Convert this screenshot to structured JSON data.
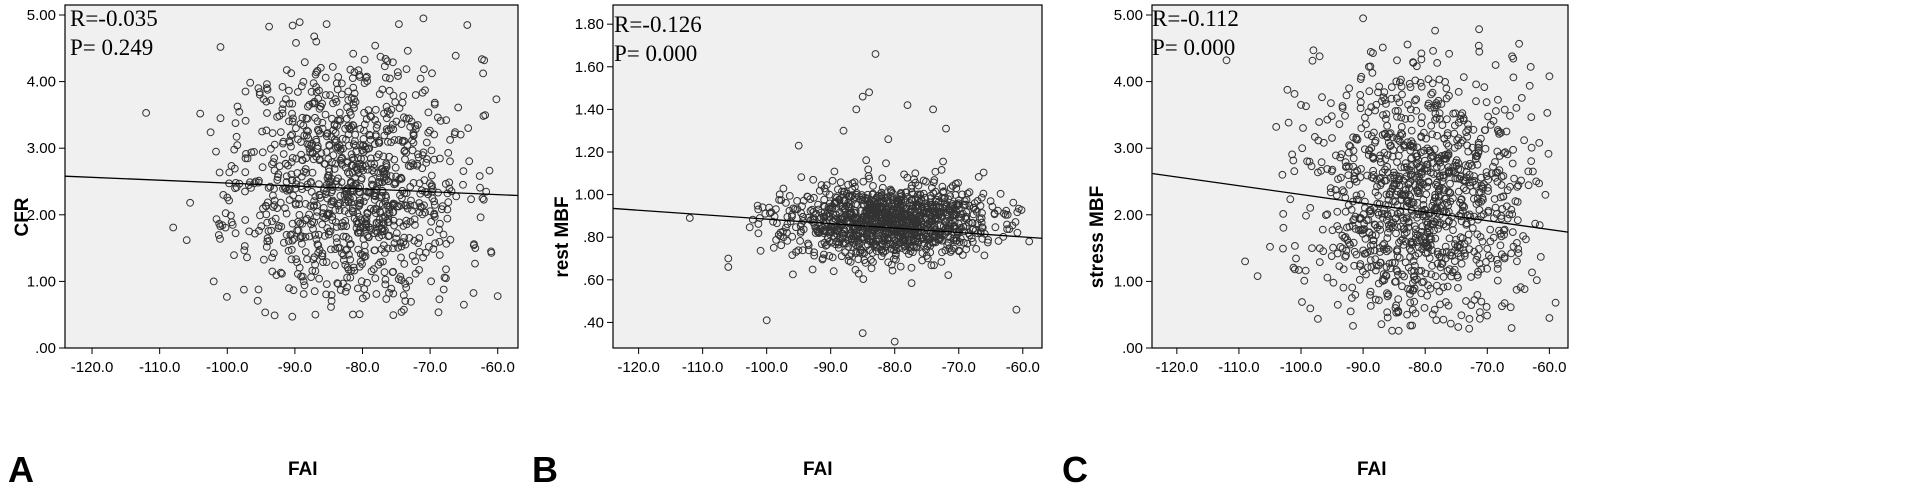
{
  "chart_data": [
    {
      "type": "scatter",
      "panel_label": "A",
      "xlabel": "FAI",
      "ylabel": "CFR",
      "annotation": {
        "r": "R=-0.035",
        "p": "P= 0.249"
      },
      "xlim": [
        -124,
        -57
      ],
      "ylim": [
        0,
        5.15
      ],
      "xticks": [
        -120,
        -110,
        -100,
        -90,
        -80,
        -70,
        -60
      ],
      "xtick_labels": [
        "-120.0",
        "-110.0",
        "-100.0",
        "-90.0",
        "-80.0",
        "-70.0",
        "-60.0"
      ],
      "yticks": [
        0,
        1,
        2,
        3,
        4,
        5
      ],
      "ytick_labels": [
        ".00",
        "1.00",
        "2.00",
        "3.00",
        "4.00",
        "5.00"
      ],
      "fit_line": {
        "x": [
          -124,
          -57
        ],
        "y": [
          2.58,
          2.29
        ]
      },
      "cloud": {
        "n": 1050,
        "x_mean": -82,
        "x_sd": 8.5,
        "y_mean": 2.45,
        "y_sd": 0.95,
        "y_min": 0.45,
        "y_max": 5.0,
        "seed": 11
      },
      "points": [
        {
          "x": -112,
          "y": 3.53
        },
        {
          "x": -108,
          "y": 1.81
        },
        {
          "x": -106,
          "y": 1.62
        },
        {
          "x": -105.5,
          "y": 2.18
        },
        {
          "x": -104,
          "y": 3.52
        },
        {
          "x": -102,
          "y": 1.0
        },
        {
          "x": -101,
          "y": 4.52
        },
        {
          "x": -101,
          "y": 3.45
        },
        {
          "x": -100,
          "y": 2.26
        },
        {
          "x": -62,
          "y": 4.32
        },
        {
          "x": -60,
          "y": 0.78
        },
        {
          "x": -61,
          "y": 1.45
        },
        {
          "x": -64.5,
          "y": 4.85
        },
        {
          "x": -65,
          "y": 0.65
        },
        {
          "x": -93,
          "y": 0.49
        }
      ],
      "grid": false,
      "background": "#f0f0f0"
    },
    {
      "type": "scatter",
      "panel_label": "B",
      "xlabel": "FAI",
      "ylabel": "rest MBF",
      "annotation": {
        "r": "R=-0.126",
        "p": "P= 0.000"
      },
      "xlim": [
        -124,
        -57
      ],
      "ylim": [
        0.28,
        1.89
      ],
      "xticks": [
        -120,
        -110,
        -100,
        -90,
        -80,
        -70,
        -60
      ],
      "xtick_labels": [
        "-120.0",
        "-110.0",
        "-100.0",
        "-90.0",
        "-80.0",
        "-70.0",
        "-60.0"
      ],
      "yticks": [
        0.4,
        0.6,
        0.8,
        1.0,
        1.2,
        1.4,
        1.6,
        1.8
      ],
      "ytick_labels": [
        ".40",
        ".60",
        ".80",
        "1.00",
        "1.20",
        "1.40",
        "1.60",
        "1.80"
      ],
      "fit_line": {
        "x": [
          -124,
          -57
        ],
        "y": [
          0.935,
          0.795
        ]
      },
      "cloud": {
        "n": 1150,
        "x_mean": -81,
        "x_sd": 8,
        "y_mean": 0.87,
        "y_sd": 0.09,
        "y_min": 0.42,
        "y_max": 1.2,
        "seed": 23
      },
      "points": [
        {
          "x": -83,
          "y": 1.66
        },
        {
          "x": -84,
          "y": 1.48
        },
        {
          "x": -85,
          "y": 1.46
        },
        {
          "x": -86,
          "y": 1.4
        },
        {
          "x": -78,
          "y": 1.42
        },
        {
          "x": -74,
          "y": 1.4
        },
        {
          "x": -72,
          "y": 1.31
        },
        {
          "x": -81,
          "y": 1.26
        },
        {
          "x": -88,
          "y": 1.3
        },
        {
          "x": -112,
          "y": 0.89
        },
        {
          "x": -106,
          "y": 0.7
        },
        {
          "x": -106,
          "y": 0.66
        },
        {
          "x": -100,
          "y": 0.41
        },
        {
          "x": -85,
          "y": 0.35
        },
        {
          "x": -80,
          "y": 0.31
        },
        {
          "x": -61,
          "y": 0.46
        },
        {
          "x": -59,
          "y": 0.78
        },
        {
          "x": -95,
          "y": 1.23
        }
      ],
      "grid": false,
      "background": "#f0f0f0"
    },
    {
      "type": "scatter",
      "panel_label": "C",
      "xlabel": "FAI",
      "ylabel": "stress MBF",
      "annotation": {
        "r": "R=-0.112",
        "p": "P= 0.000"
      },
      "xlim": [
        -124,
        -57
      ],
      "ylim": [
        0,
        5.15
      ],
      "xticks": [
        -120,
        -110,
        -100,
        -90,
        -80,
        -70,
        -60
      ],
      "xtick_labels": [
        "-120.0",
        "-110.0",
        "-100.0",
        "-90.0",
        "-80.0",
        "-70.0",
        "-60.0"
      ],
      "yticks": [
        0,
        1,
        2,
        3,
        4,
        5
      ],
      "ytick_labels": [
        ".00",
        "1.00",
        "2.00",
        "3.00",
        "4.00",
        "5.00"
      ],
      "fit_line": {
        "x": [
          -124,
          -57
        ],
        "y": [
          2.62,
          1.74
        ]
      },
      "cloud": {
        "n": 1100,
        "x_mean": -81,
        "x_sd": 8.5,
        "y_mean": 2.25,
        "y_sd": 0.95,
        "y_min": 0.25,
        "y_max": 4.95,
        "seed": 37
      },
      "points": [
        {
          "x": -112,
          "y": 4.32
        },
        {
          "x": -109,
          "y": 1.3
        },
        {
          "x": -107,
          "y": 1.08
        },
        {
          "x": -105,
          "y": 1.52
        },
        {
          "x": -104,
          "y": 3.32
        },
        {
          "x": -103,
          "y": 2.6
        },
        {
          "x": -100,
          "y": 3.65
        },
        {
          "x": -101,
          "y": 1.18
        },
        {
          "x": -98,
          "y": 4.47
        },
        {
          "x": -97,
          "y": 4.38
        },
        {
          "x": -60,
          "y": 4.08
        },
        {
          "x": -59,
          "y": 0.68
        },
        {
          "x": -60,
          "y": 0.45
        },
        {
          "x": -63,
          "y": 4.22
        },
        {
          "x": -66,
          "y": 4.38
        },
        {
          "x": -90,
          "y": 4.95
        },
        {
          "x": -92,
          "y": 0.55
        }
      ],
      "grid": false,
      "background": "#f0f0f0"
    }
  ]
}
